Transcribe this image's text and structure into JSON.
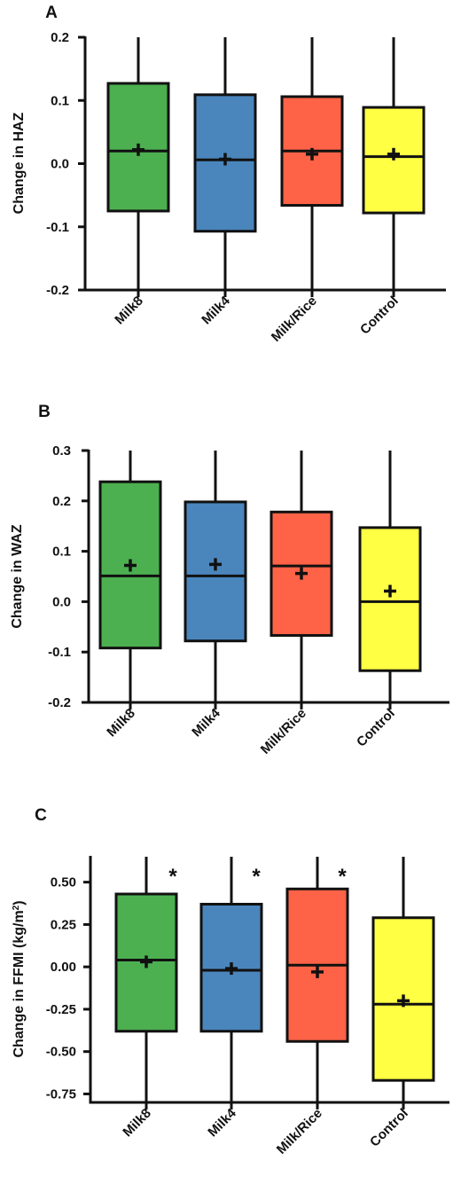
{
  "chart_data": [
    {
      "type": "box",
      "panel": "A",
      "ylabel": "Change in HAZ",
      "ylim": [
        -0.2,
        0.2
      ],
      "yticks": [
        -0.2,
        -0.1,
        0.0,
        0.1,
        0.2
      ],
      "ytick_labels": [
        "-0.2",
        "-0.1",
        "0.0",
        "0.1",
        "0.2"
      ],
      "categories": [
        "Milk8",
        "Milk4",
        "Milk/Rice",
        "Control"
      ],
      "colors": [
        "#4caf50",
        "#4a85bc",
        "#ff6347",
        "#ffff44"
      ],
      "boxes": [
        {
          "whisker_low": -0.2,
          "q1": -0.075,
          "median": 0.02,
          "q3": 0.127,
          "whisker_high": 0.2,
          "mean": 0.022
        },
        {
          "whisker_low": -0.2,
          "q1": -0.107,
          "median": 0.006,
          "q3": 0.109,
          "whisker_high": 0.2,
          "mean": 0.007
        },
        {
          "whisker_low": -0.2,
          "q1": -0.066,
          "median": 0.02,
          "q3": 0.106,
          "whisker_high": 0.2,
          "mean": 0.015
        },
        {
          "whisker_low": -0.2,
          "q1": -0.078,
          "median": 0.011,
          "q3": 0.089,
          "whisker_high": 0.2,
          "mean": 0.015
        }
      ],
      "significance": [
        "",
        "",
        "",
        ""
      ]
    },
    {
      "type": "box",
      "panel": "B",
      "ylabel": "Change in WAZ",
      "ylim": [
        -0.2,
        0.3
      ],
      "yticks": [
        -0.2,
        -0.1,
        0.0,
        0.1,
        0.2,
        0.3
      ],
      "ytick_labels": [
        "-0.2",
        "-0.1",
        "0.0",
        "0.1",
        "0.2",
        "0.3"
      ],
      "categories": [
        "Milk8",
        "Milk4",
        "Milk/Rice",
        "Control"
      ],
      "colors": [
        "#4caf50",
        "#4a85bc",
        "#ff6347",
        "#ffff44"
      ],
      "boxes": [
        {
          "whisker_low": -0.2,
          "q1": -0.092,
          "median": 0.051,
          "q3": 0.238,
          "whisker_high": 0.3,
          "mean": 0.072
        },
        {
          "whisker_low": -0.2,
          "q1": -0.078,
          "median": 0.051,
          "q3": 0.198,
          "whisker_high": 0.3,
          "mean": 0.074
        },
        {
          "whisker_low": -0.2,
          "q1": -0.067,
          "median": 0.071,
          "q3": 0.178,
          "whisker_high": 0.3,
          "mean": 0.056
        },
        {
          "whisker_low": -0.2,
          "q1": -0.137,
          "median": 0.0,
          "q3": 0.147,
          "whisker_high": 0.3,
          "mean": 0.021
        }
      ],
      "significance": [
        "",
        "",
        "",
        ""
      ]
    },
    {
      "type": "box",
      "panel": "C",
      "ylabel_main": "Change in FFMI (kg/m",
      "ylabel_sup": "2",
      "ylabel_tail": ")",
      "ylim": [
        -0.8,
        0.65
      ],
      "yticks": [
        -0.75,
        -0.5,
        -0.25,
        0.0,
        0.25,
        0.5
      ],
      "ytick_labels": [
        "-0.75",
        "-0.50",
        "-0.25",
        "0.00",
        "0.25",
        "0.50"
      ],
      "categories": [
        "Milk8",
        "Milk4",
        "Milk/Rice",
        "Control"
      ],
      "colors": [
        "#4caf50",
        "#4a85bc",
        "#ff6347",
        "#ffff44"
      ],
      "boxes": [
        {
          "whisker_low": -0.8,
          "q1": -0.38,
          "median": 0.04,
          "q3": 0.43,
          "whisker_high": 0.65,
          "mean": 0.03
        },
        {
          "whisker_low": -0.8,
          "q1": -0.38,
          "median": -0.02,
          "q3": 0.37,
          "whisker_high": 0.65,
          "mean": -0.01
        },
        {
          "whisker_low": -0.8,
          "q1": -0.44,
          "median": 0.01,
          "q3": 0.46,
          "whisker_high": 0.65,
          "mean": -0.03
        },
        {
          "whisker_low": -0.8,
          "q1": -0.67,
          "median": -0.22,
          "q3": 0.29,
          "whisker_high": 0.65,
          "mean": -0.2
        }
      ],
      "significance": [
        "*",
        "*",
        "*",
        ""
      ]
    }
  ]
}
